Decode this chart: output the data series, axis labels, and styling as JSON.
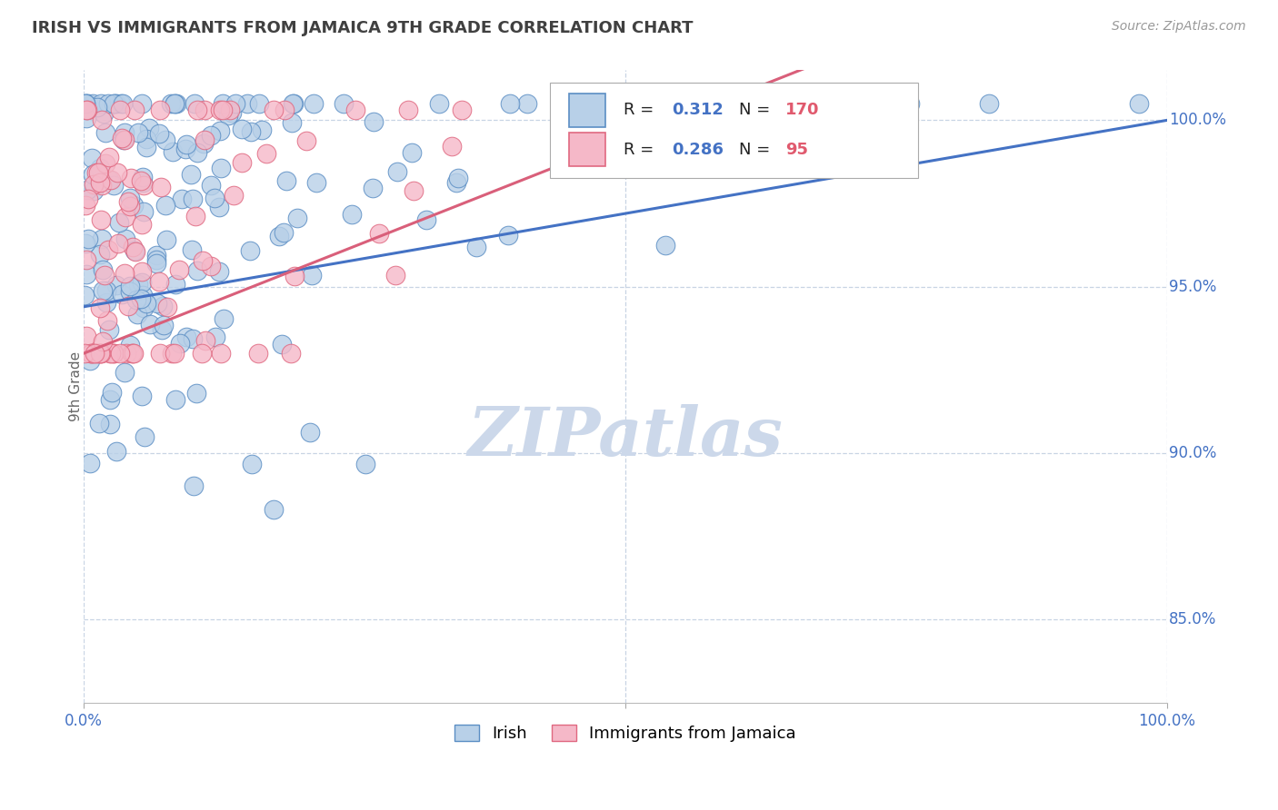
{
  "title": "IRISH VS IMMIGRANTS FROM JAMAICA 9TH GRADE CORRELATION CHART",
  "source_text": "Source: ZipAtlas.com",
  "ylabel": "9th Grade",
  "y_tick_labels": [
    "85.0%",
    "90.0%",
    "95.0%",
    "100.0%"
  ],
  "y_tick_values": [
    0.85,
    0.9,
    0.95,
    1.0
  ],
  "x_range": [
    0.0,
    1.0
  ],
  "y_range": [
    0.825,
    1.015
  ],
  "irish_R": 0.312,
  "irish_N": 170,
  "jamaica_R": 0.286,
  "jamaica_N": 95,
  "irish_color": "#b8d0e8",
  "irish_edge_color": "#5b8ec4",
  "irish_line_color": "#4472c4",
  "jamaica_color": "#f5b8c8",
  "jamaica_edge_color": "#e06880",
  "jamaica_line_color": "#d95f7a",
  "legend_R_N_color": "#4472c4",
  "legend_N2_color": "#e05a6e",
  "watermark_color": "#ccd8ea",
  "grid_color": "#c8d4e4",
  "title_color": "#404040",
  "axis_label_color": "#4472c4"
}
